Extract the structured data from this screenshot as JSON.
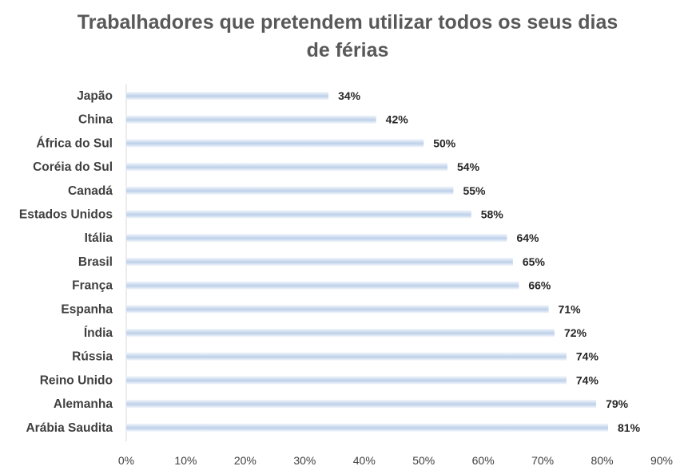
{
  "chart_data": {
    "type": "bar",
    "orientation": "horizontal",
    "title_lines": [
      "Trabalhadores que pretendem utilizar todos os seus dias",
      "de férias"
    ],
    "categories": [
      "Japão",
      "China",
      "África do Sul",
      "Coréia do Sul",
      "Canadá",
      "Estados Unidos",
      "Itália",
      "Brasil",
      "França",
      "Espanha",
      "Índia",
      "Rússia",
      "Reino Unido",
      "Alemanha",
      "Arábia Saudita"
    ],
    "values": [
      34,
      42,
      50,
      54,
      55,
      58,
      64,
      65,
      66,
      71,
      72,
      74,
      74,
      79,
      81
    ],
    "value_labels": [
      "34%",
      "42%",
      "50%",
      "54%",
      "55%",
      "58%",
      "64%",
      "65%",
      "66%",
      "71%",
      "72%",
      "74%",
      "74%",
      "79%",
      "81%"
    ],
    "x_ticks": [
      0,
      10,
      20,
      30,
      40,
      50,
      60,
      70,
      80,
      90
    ],
    "x_tick_labels": [
      "0%",
      "10%",
      "20%",
      "30%",
      "40%",
      "50%",
      "60%",
      "70%",
      "80%",
      "90%"
    ],
    "xlim": [
      0,
      90
    ],
    "grid": false,
    "legend": "none",
    "bar_color_light": "#f2f6fb",
    "bar_color_dark": "#bdd0e9",
    "axis_color": "#d9d9d9"
  }
}
